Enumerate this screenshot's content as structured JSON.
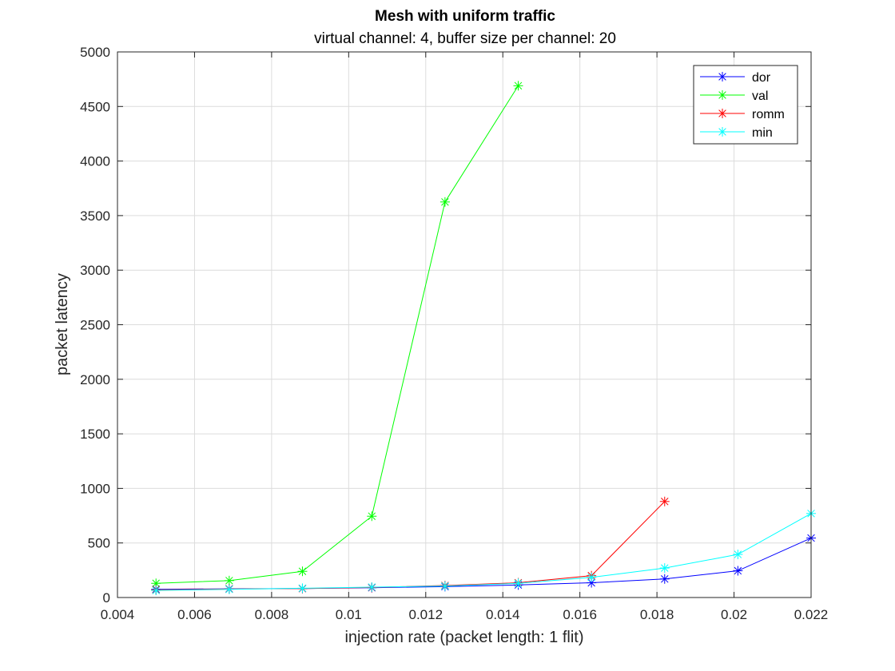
{
  "chart_data": {
    "type": "line",
    "title": "Mesh with uniform traffic",
    "subtitle": "virtual channel: 4, buffer size per channel: 20",
    "xlabel": "injection rate (packet length: 1 flit)",
    "ylabel": "packet latency",
    "xlim": [
      0.004,
      0.022
    ],
    "ylim": [
      0,
      5000
    ],
    "xticks": [
      0.004,
      0.006,
      0.008,
      0.01,
      0.012,
      0.014,
      0.016,
      0.018,
      0.02,
      0.022
    ],
    "xtick_labels": [
      "0.004",
      "0.006",
      "0.008",
      "0.01",
      "0.012",
      "0.014",
      "0.016",
      "0.018",
      "0.02",
      "0.022"
    ],
    "yticks": [
      0,
      500,
      1000,
      1500,
      2000,
      2500,
      3000,
      3500,
      4000,
      4500,
      5000
    ],
    "ytick_labels": [
      "0",
      "500",
      "1000",
      "1500",
      "2000",
      "2500",
      "3000",
      "3500",
      "4000",
      "4500",
      "5000"
    ],
    "grid": true,
    "legend_position": "top-right",
    "marker": "asterisk",
    "series": [
      {
        "name": "dor",
        "color": "#0000ff",
        "x": [
          0.005,
          0.0069,
          0.0088,
          0.0106,
          0.0125,
          0.0144,
          0.0163,
          0.0182,
          0.0201,
          0.022
        ],
        "y": [
          75,
          80,
          82,
          90,
          100,
          115,
          135,
          170,
          245,
          545
        ]
      },
      {
        "name": "val",
        "color": "#00ff00",
        "x": [
          0.005,
          0.0069,
          0.0088,
          0.0106,
          0.0125,
          0.0144
        ],
        "y": [
          130,
          155,
          240,
          745,
          3625,
          4690
        ]
      },
      {
        "name": "romm",
        "color": "#ff0000",
        "x": [
          0.005,
          0.0069,
          0.0088,
          0.0106,
          0.0125,
          0.0144,
          0.0163,
          0.0182
        ],
        "y": [
          70,
          78,
          82,
          92,
          110,
          135,
          200,
          880
        ]
      },
      {
        "name": "min",
        "color": "#00ffff",
        "x": [
          0.005,
          0.0069,
          0.0088,
          0.0106,
          0.0125,
          0.0144,
          0.0163,
          0.0182,
          0.0201,
          0.022
        ],
        "y": [
          65,
          75,
          85,
          95,
          105,
          130,
          185,
          270,
          395,
          770
        ]
      }
    ]
  }
}
